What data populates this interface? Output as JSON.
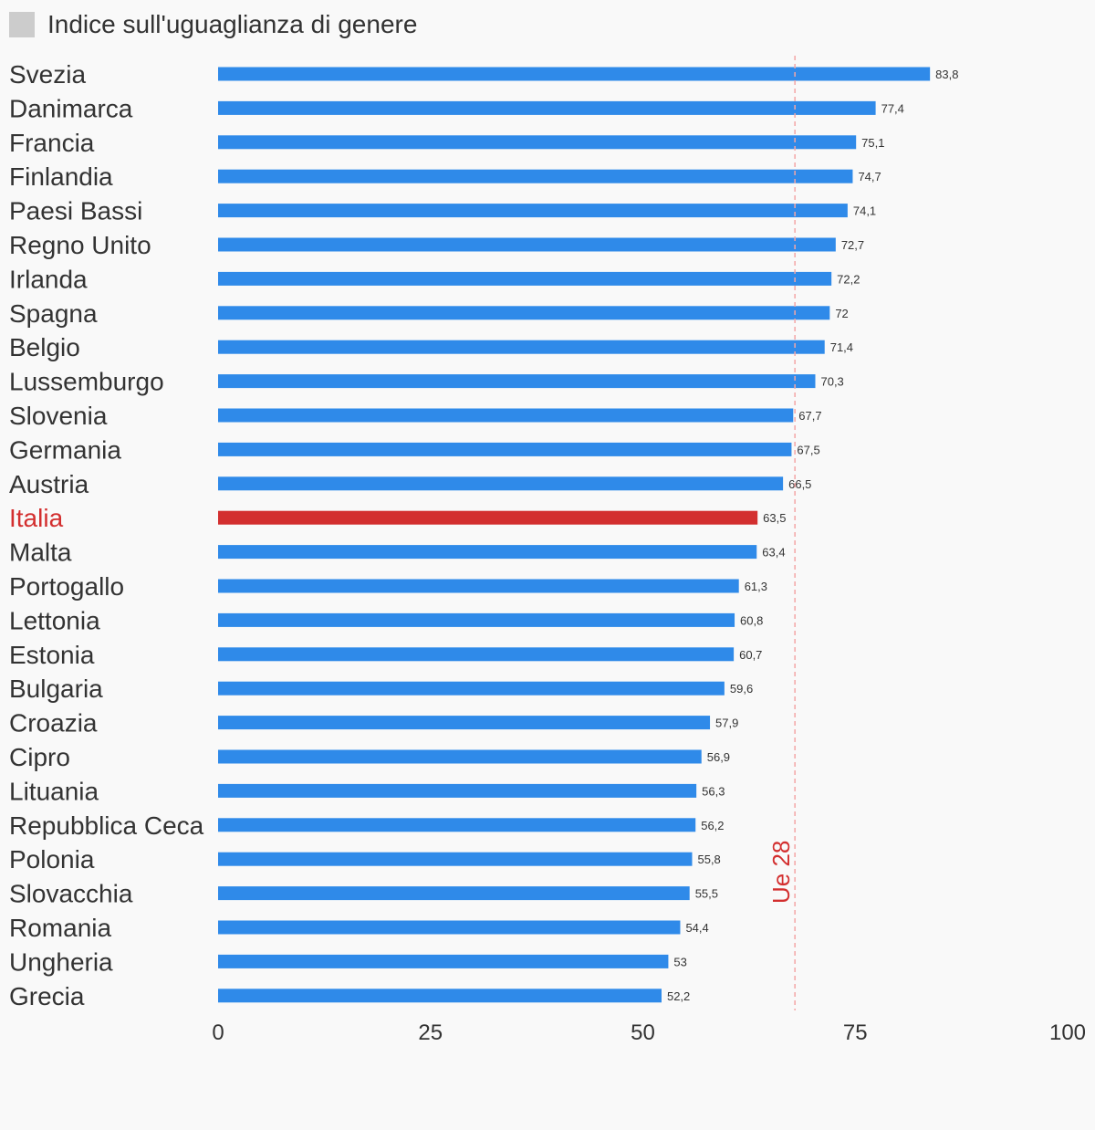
{
  "legend": {
    "label": "Indice sull'uguaglianza di genere",
    "swatch_color": "#cccccc"
  },
  "chart_data": {
    "type": "bar",
    "orientation": "horizontal",
    "categories": [
      "Svezia",
      "Danimarca",
      "Francia",
      "Finlandia",
      "Paesi Bassi",
      "Regno Unito",
      "Irlanda",
      "Spagna",
      "Belgio",
      "Lussemburgo",
      "Slovenia",
      "Germania",
      "Austria",
      "Italia",
      "Malta",
      "Portogallo",
      "Lettonia",
      "Estonia",
      "Bulgaria",
      "Croazia",
      "Cipro",
      "Lituania",
      "Repubblica Ceca",
      "Polonia",
      "Slovacchia",
      "Romania",
      "Ungheria",
      "Grecia"
    ],
    "values": [
      83.8,
      77.4,
      75.1,
      74.7,
      74.1,
      72.7,
      72.2,
      72,
      71.4,
      70.3,
      67.7,
      67.5,
      66.5,
      63.5,
      63.4,
      61.3,
      60.8,
      60.7,
      59.6,
      57.9,
      56.9,
      56.3,
      56.2,
      55.8,
      55.5,
      54.4,
      53,
      52.2
    ],
    "value_labels": [
      "83,8",
      "77,4",
      "75,1",
      "74,7",
      "74,1",
      "72,7",
      "72,2",
      "72",
      "71,4",
      "70,3",
      "67,7",
      "67,5",
      "66,5",
      "63,5",
      "63,4",
      "61,3",
      "60,8",
      "60,7",
      "59,6",
      "57,9",
      "56,9",
      "56,3",
      "56,2",
      "55,8",
      "55,5",
      "54,4",
      "53",
      "52,2"
    ],
    "highlight": "Italia",
    "xlim": [
      0,
      100
    ],
    "xticks": [
      "0",
      "25",
      "50",
      "75",
      "100"
    ],
    "grid": false,
    "reference_line": {
      "label": "Ue 28",
      "value": 67.9
    },
    "colors": {
      "bar": "#2f8ae9",
      "highlight": "#d32f2f",
      "reference": "#f4a6a6",
      "reference_text": "#d32f2f"
    }
  }
}
